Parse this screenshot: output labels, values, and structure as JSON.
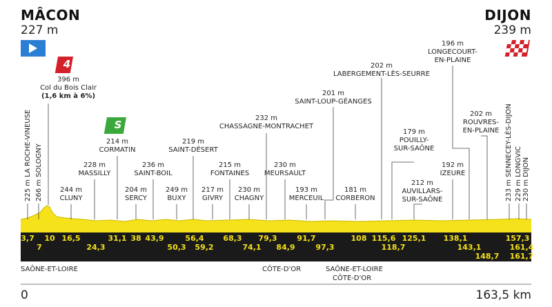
{
  "start": {
    "city": "MÂCON",
    "altitude": "227 m",
    "km": "0"
  },
  "finish": {
    "city": "DIJON",
    "altitude": "239 m",
    "km": "163,5 km"
  },
  "climb": {
    "category": "4",
    "altitude": "396 m",
    "name": "Col du Bois Clair",
    "detail": "(1,6 km à 6%)"
  },
  "sprint": {
    "label": "S",
    "color": "#3aa83a"
  },
  "colors": {
    "profile_fill": "#f5e21a",
    "band": "#1a1a1a",
    "km_text": "#f5e21a",
    "start_flag": "#2a7fd4",
    "climb_badge": "#d4202a"
  },
  "labels": [
    {
      "id": "cluny",
      "alt": "244 m",
      "name": "CLUNY"
    },
    {
      "id": "massilly",
      "alt": "228 m",
      "name": "MASSILLY"
    },
    {
      "id": "cormatin",
      "alt": "214 m",
      "name": "CORMATIN"
    },
    {
      "id": "sercy",
      "alt": "204 m",
      "name": "SERCY"
    },
    {
      "id": "saint-boil",
      "alt": "236 m",
      "name": "SAINT-BOIL"
    },
    {
      "id": "buxy",
      "alt": "249 m",
      "name": "BUXY"
    },
    {
      "id": "saint-desert",
      "alt": "219 m",
      "name": "SAINT-DÉSERT"
    },
    {
      "id": "givry",
      "alt": "217 m",
      "name": "GIVRY"
    },
    {
      "id": "fontaines",
      "alt": "215 m",
      "name": "FONTAINES"
    },
    {
      "id": "chagny",
      "alt": "230 m",
      "name": "CHAGNY"
    },
    {
      "id": "chassagne",
      "alt": "232 m",
      "name": "CHASSAGNE-MONTRACHET"
    },
    {
      "id": "meursault",
      "alt": "230 m",
      "name": "MEURSAULT"
    },
    {
      "id": "merceuil",
      "alt": "193 m",
      "name": "MERCEUIL"
    },
    {
      "id": "saint-loup",
      "alt": "201 m",
      "name": "SAINT-LOUP-GÉANGES"
    },
    {
      "id": "labergement",
      "alt": "202 m",
      "name": "LABERGEMENT-LÈS-SEURRE"
    },
    {
      "id": "corberon",
      "alt": "181 m",
      "name": "CORBERON"
    },
    {
      "id": "pouilly",
      "alt": "179 m",
      "name1": "POUILLY-",
      "name2": "SUR-SAÔNE"
    },
    {
      "id": "auvillars",
      "alt": "212 m",
      "name1": "AUVILLARS-",
      "name2": "SUR-SAÔNE"
    },
    {
      "id": "izeure",
      "alt": "192 m",
      "name": "IZEURE"
    },
    {
      "id": "longecourt",
      "alt": "196 m",
      "name1": "LONGECOURT-",
      "name2": "EN-PLAINE"
    },
    {
      "id": "rouvres",
      "alt": "202 m",
      "name1": "ROUVRES-",
      "name2": "EN-PLAINE"
    }
  ],
  "vertical_labels": [
    {
      "id": "la-roche",
      "text": "225 m  LA ROCHE-VINEUSE"
    },
    {
      "id": "sologny",
      "text": "266 m  SOLOGNY"
    },
    {
      "id": "sennecey",
      "text": "233 m  SENNECEY-LÈS-DIJON"
    },
    {
      "id": "longvic",
      "text": "229 m  LONGVIC"
    },
    {
      "id": "dijon",
      "text": "230 m  DIJON"
    }
  ],
  "km_top": [
    "3,7",
    "10",
    "16,5",
    "31,1",
    "38",
    "43,9",
    "56,4",
    "68,3",
    "79,3",
    "91,7",
    "108",
    "115,6",
    "125,1",
    "138,1",
    "157,3",
    "161,4"
  ],
  "km_bottom": [
    "7",
    "24,3",
    "50,3",
    "59,2",
    "74,1",
    "84,9",
    "97,3",
    "118,7",
    "143,1",
    "148,7",
    "161,7"
  ],
  "regions": {
    "saone1": "SAÔNE-ET-LOIRE",
    "cotedor1": "CÔTE-D'OR",
    "saone2": "SAÔNE-ET-LOIRE",
    "cotedor2": "CÔTE-D'OR"
  }
}
